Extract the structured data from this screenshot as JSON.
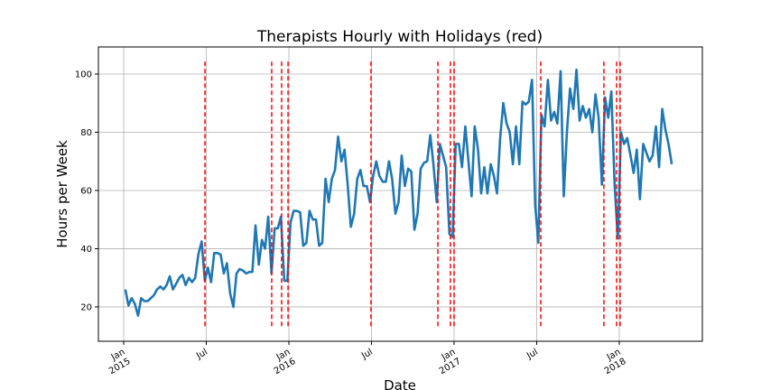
{
  "chart_data": {
    "type": "line",
    "title": "Therapists Hourly with Holidays (red)",
    "x_label": "Date",
    "y_label": "Hours per Week",
    "x": [
      2015.01,
      2015.029,
      2015.048,
      2015.068,
      2015.087,
      2015.106,
      2015.125,
      2015.145,
      2015.164,
      2015.183,
      2015.202,
      2015.222,
      2015.241,
      2015.26,
      2015.279,
      2015.298,
      2015.318,
      2015.337,
      2015.356,
      2015.375,
      2015.395,
      2015.414,
      2015.433,
      2015.452,
      2015.472,
      2015.491,
      2015.51,
      2015.529,
      2015.548,
      2015.568,
      2015.587,
      2015.606,
      2015.625,
      2015.645,
      2015.664,
      2015.683,
      2015.702,
      2015.722,
      2015.741,
      2015.76,
      2015.779,
      2015.798,
      2015.818,
      2015.837,
      2015.856,
      2015.875,
      2015.895,
      2015.914,
      2015.933,
      2015.952,
      2015.972,
      2015.991,
      2016.01,
      2016.029,
      2016.048,
      2016.068,
      2016.087,
      2016.106,
      2016.125,
      2016.145,
      2016.164,
      2016.183,
      2016.202,
      2016.222,
      2016.241,
      2016.26,
      2016.279,
      2016.298,
      2016.318,
      2016.337,
      2016.356,
      2016.375,
      2016.395,
      2016.414,
      2016.433,
      2016.452,
      2016.472,
      2016.491,
      2016.51,
      2016.529,
      2016.548,
      2016.568,
      2016.587,
      2016.606,
      2016.625,
      2016.645,
      2016.664,
      2016.683,
      2016.702,
      2016.722,
      2016.741,
      2016.76,
      2016.779,
      2016.798,
      2016.818,
      2016.837,
      2016.856,
      2016.875,
      2016.895,
      2016.914,
      2016.933,
      2016.952,
      2016.972,
      2016.991,
      2017.01,
      2017.029,
      2017.048,
      2017.068,
      2017.087,
      2017.106,
      2017.125,
      2017.145,
      2017.164,
      2017.183,
      2017.202,
      2017.222,
      2017.241,
      2017.26,
      2017.279,
      2017.298,
      2017.318,
      2017.337,
      2017.356,
      2017.375,
      2017.395,
      2017.414,
      2017.433,
      2017.452,
      2017.472,
      2017.491,
      2017.51,
      2017.529,
      2017.548,
      2017.568,
      2017.587,
      2017.606,
      2017.625,
      2017.645,
      2017.664,
      2017.683,
      2017.702,
      2017.722,
      2017.741,
      2017.76,
      2017.779,
      2017.798,
      2017.818,
      2017.837,
      2017.856,
      2017.875,
      2017.895,
      2017.914,
      2017.933,
      2017.952,
      2017.972,
      2017.991,
      2018.01,
      2018.029,
      2018.048,
      2018.068,
      2018.087,
      2018.106,
      2018.125,
      2018.145,
      2018.164,
      2018.183,
      2018.202,
      2018.222,
      2018.241,
      2018.26,
      2018.279,
      2018.298,
      2018.318
    ],
    "series": [
      {
        "color": "#1f77b4",
        "values": [
          26,
          20.5,
          23,
          21,
          17,
          23,
          22,
          22,
          23,
          24,
          26,
          27,
          26,
          27.5,
          30.5,
          26,
          28,
          30,
          31,
          27.5,
          30,
          28.5,
          30,
          38,
          42.5,
          29,
          33.5,
          28.5,
          38.5,
          38.5,
          38,
          31.5,
          35,
          24.5,
          20,
          31.5,
          33,
          32.5,
          31.5,
          32,
          32,
          48,
          34.5,
          43,
          40,
          51,
          31.5,
          47,
          47,
          51,
          29,
          29,
          49,
          53,
          53,
          52.5,
          41,
          42,
          53,
          50,
          50,
          41,
          42,
          64,
          56,
          64,
          67,
          78.5,
          70,
          74,
          62,
          47.5,
          52,
          64,
          67,
          61.5,
          61.5,
          56,
          65,
          70,
          65,
          63,
          63,
          70,
          64,
          52,
          56,
          72,
          61.5,
          67.5,
          66.5,
          46.5,
          52,
          67.5,
          69.5,
          70,
          79,
          69,
          56,
          76,
          72,
          68,
          45,
          44,
          76,
          76,
          68,
          82,
          70,
          58,
          82,
          74,
          59,
          68,
          59,
          69,
          65,
          59,
          78,
          90,
          83,
          80,
          69,
          82,
          69,
          90.5,
          89.5,
          90.5,
          98,
          55,
          42,
          86,
          82,
          98,
          84,
          87,
          83,
          101,
          58,
          80,
          95,
          88,
          101.5,
          84,
          89,
          85,
          88,
          80,
          93,
          85,
          62,
          92,
          85,
          94,
          62,
          43.5,
          80,
          76,
          78,
          72,
          66,
          74,
          57,
          76,
          73,
          70,
          72,
          82,
          68,
          88,
          81,
          76,
          69
        ]
      }
    ],
    "holidays": [
      2015.492,
      2015.896,
      2015.956,
      2015.995,
      2016.497,
      2016.902,
      2016.978,
      2017.0,
      2017.525,
      2017.907,
      2017.984,
      2018.005
    ],
    "holiday_color": "red",
    "xlim": [
      2014.847,
      2018.503
    ],
    "xticks": [
      {
        "value": 2015,
        "label": "Jan\n2015"
      },
      {
        "value": 2015.5,
        "label": "Jul"
      },
      {
        "value": 2016,
        "label": "Jan\n2016"
      },
      {
        "value": 2016.5,
        "label": "Jul"
      },
      {
        "value": 2017,
        "label": "Jan\n2017"
      },
      {
        "value": 2017.5,
        "label": "Jul"
      },
      {
        "value": 2018,
        "label": "Jan\n2018"
      }
    ],
    "ylim": [
      8.2,
      109.3
    ],
    "yticks": [
      20,
      40,
      60,
      80,
      100
    ],
    "grid": true
  }
}
